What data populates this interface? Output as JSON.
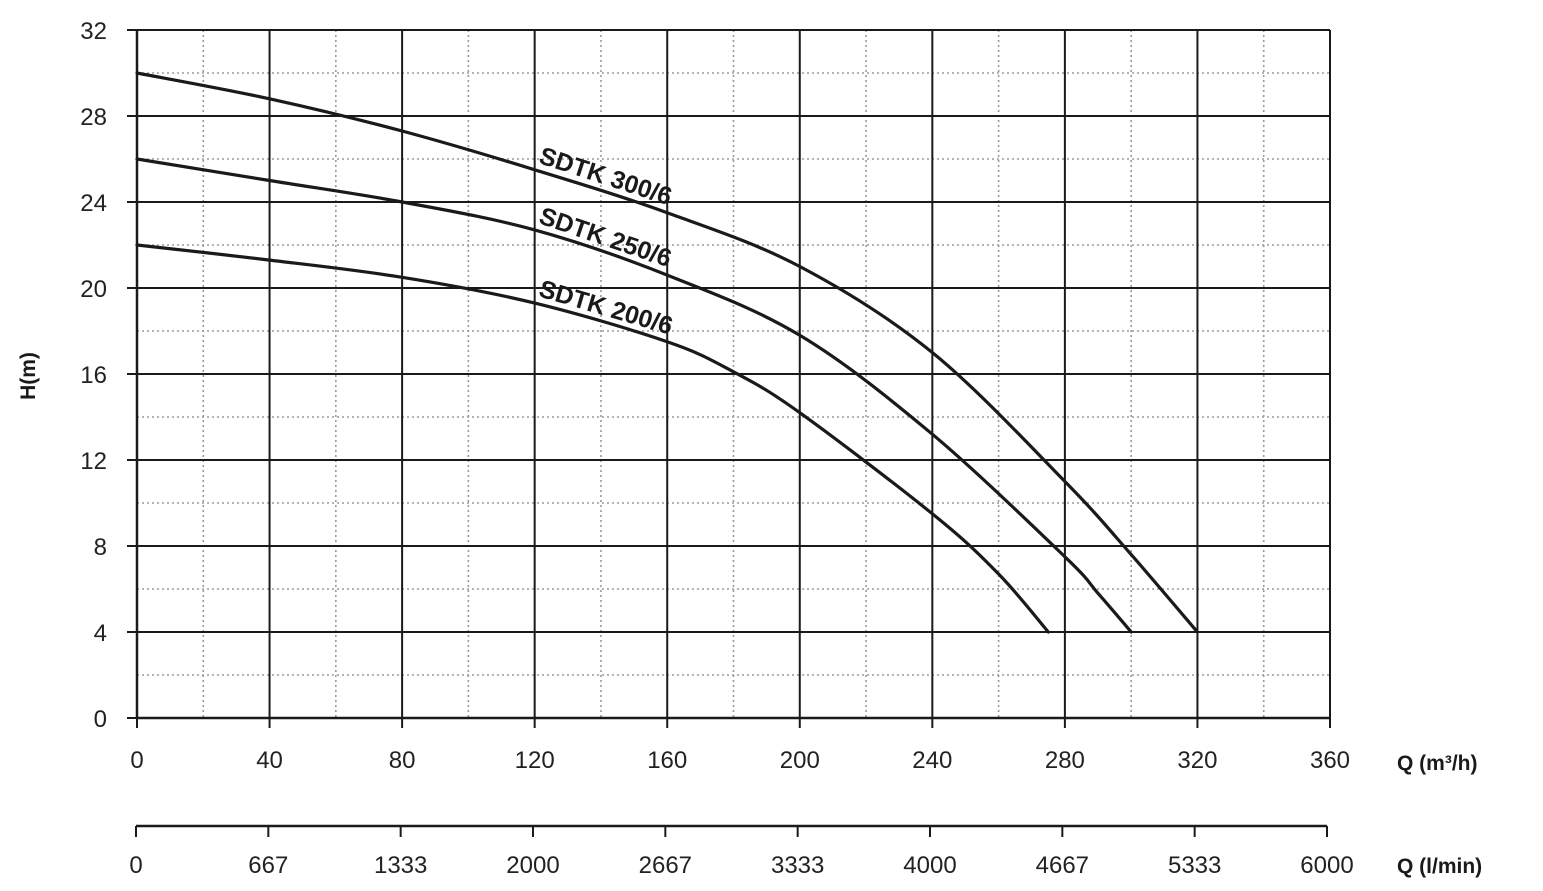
{
  "chart_data": {
    "type": "line",
    "xlabel": "Q (m³/h)",
    "ylabel": "H(m)",
    "xlim": [
      0,
      360
    ],
    "ylim": [
      0,
      32
    ],
    "x_ticks": [
      0,
      40,
      80,
      120,
      160,
      200,
      240,
      280,
      320,
      360
    ],
    "y_ticks": [
      0,
      4,
      8,
      12,
      16,
      20,
      24,
      28,
      32
    ],
    "grid": true,
    "secondary_axis": {
      "label": "Q (l/min)",
      "ticks": [
        "0",
        "667",
        "1333",
        "2000",
        "2667",
        "3333",
        "4000",
        "4667",
        "5333",
        "6000"
      ]
    },
    "series": [
      {
        "name": "SDTK 300/6",
        "x": [
          0,
          40,
          80,
          120,
          160,
          200,
          240,
          280,
          300,
          320
        ],
        "y": [
          30,
          28.8,
          27.3,
          25.5,
          23.5,
          21,
          17,
          11,
          7.6,
          4
        ]
      },
      {
        "name": "SDTK 250/6",
        "x": [
          0,
          40,
          80,
          120,
          160,
          200,
          240,
          280,
          290,
          300
        ],
        "y": [
          26,
          25,
          24,
          22.7,
          20.6,
          17.8,
          13.2,
          7.5,
          5.8,
          4
        ]
      },
      {
        "name": "SDTK 200/6",
        "x": [
          0,
          40,
          80,
          120,
          160,
          180,
          200,
          240,
          260,
          275
        ],
        "y": [
          22,
          21.3,
          20.5,
          19.3,
          17.5,
          16.1,
          14.2,
          9.5,
          6.7,
          4
        ]
      }
    ]
  }
}
